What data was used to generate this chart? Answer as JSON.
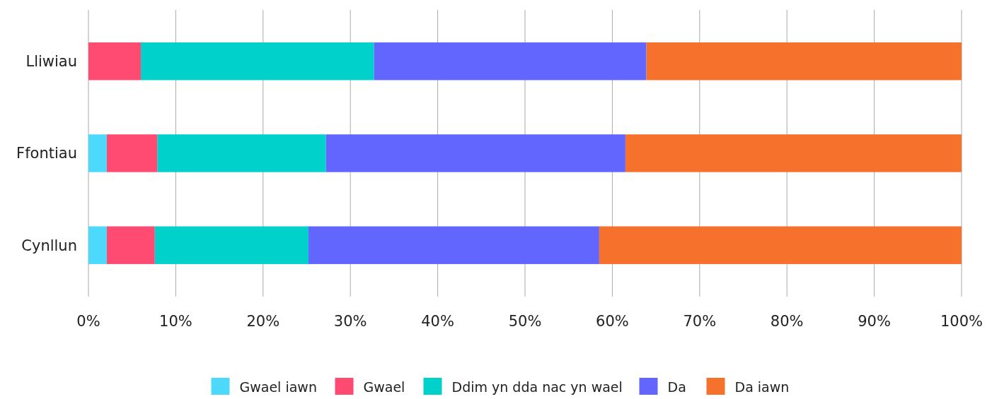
{
  "chart_data": {
    "type": "bar",
    "orientation": "horizontal",
    "stacked": true,
    "categories": [
      "Lliwiau",
      "Ffontiau",
      "Cynllun"
    ],
    "series": [
      {
        "name": "Gwael iawn",
        "color": "#4dd9fc",
        "values": [
          0,
          2.1,
          2.1
        ]
      },
      {
        "name": "Gwael",
        "color": "#ff4a72",
        "values": [
          6.0,
          5.8,
          5.5
        ]
      },
      {
        "name": "Ddim yn dda nac yn wael",
        "color": "#00d1ca",
        "values": [
          26.7,
          19.3,
          17.6
        ]
      },
      {
        "name": "Da",
        "color": "#6266ff",
        "values": [
          31.2,
          34.3,
          33.3
        ]
      },
      {
        "name": "Da iawn",
        "color": "#f5712c",
        "values": [
          36.1,
          38.5,
          41.5
        ]
      }
    ],
    "xlim": [
      0,
      100
    ],
    "xticks": [
      {
        "value": 0,
        "label": "0%"
      },
      {
        "value": 10,
        "label": "10%"
      },
      {
        "value": 20,
        "label": "20%"
      },
      {
        "value": 30,
        "label": "30%"
      },
      {
        "value": 40,
        "label": "40%"
      },
      {
        "value": 50,
        "label": "50%"
      },
      {
        "value": 60,
        "label": "60%"
      },
      {
        "value": 70,
        "label": "70%"
      },
      {
        "value": 80,
        "label": "80%"
      },
      {
        "value": 90,
        "label": "90%"
      },
      {
        "value": 100,
        "label": "100%"
      }
    ],
    "grid": "x",
    "legend": "bottom"
  }
}
